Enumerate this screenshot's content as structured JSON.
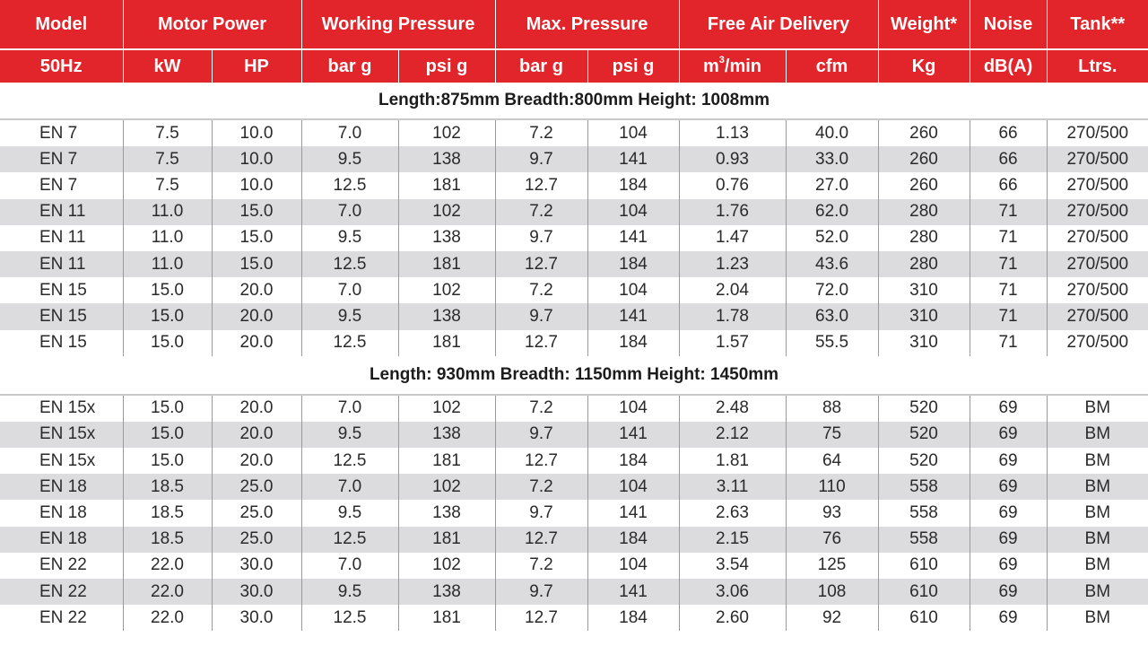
{
  "header": {
    "row1": [
      "Model",
      "Motor Power",
      "Working Pressure",
      "Max. Pressure",
      "Free Air Delivery",
      "Weight*",
      "Noise",
      "Tank**"
    ],
    "row2": {
      "model": "50Hz",
      "kw": "kW",
      "hp": "HP",
      "bar_w": "bar g",
      "psi_w": "psi g",
      "bar_m": "bar g",
      "psi_m": "psi g",
      "m3_base": "m",
      "m3_sup": "3",
      "m3_tail": "/min",
      "cfm": "cfm",
      "kg": "Kg",
      "db": "dB(A)",
      "ltrs": "Ltrs."
    }
  },
  "sections": [
    {
      "dimensions": "Length:875mm Breadth:800mm Height: 1008mm",
      "rows": [
        [
          "EN 7",
          "7.5",
          "10.0",
          "7.0",
          "102",
          "7.2",
          "104",
          "1.13",
          "40.0",
          "260",
          "66",
          "270/500"
        ],
        [
          "EN 7",
          "7.5",
          "10.0",
          "9.5",
          "138",
          "9.7",
          "141",
          "0.93",
          "33.0",
          "260",
          "66",
          "270/500"
        ],
        [
          "EN 7",
          "7.5",
          "10.0",
          "12.5",
          "181",
          "12.7",
          "184",
          "0.76",
          "27.0",
          "260",
          "66",
          "270/500"
        ],
        [
          "EN 11",
          "11.0",
          "15.0",
          "7.0",
          "102",
          "7.2",
          "104",
          "1.76",
          "62.0",
          "280",
          "71",
          "270/500"
        ],
        [
          "EN 11",
          "11.0",
          "15.0",
          "9.5",
          "138",
          "9.7",
          "141",
          "1.47",
          "52.0",
          "280",
          "71",
          "270/500"
        ],
        [
          "EN 11",
          "11.0",
          "15.0",
          "12.5",
          "181",
          "12.7",
          "184",
          "1.23",
          "43.6",
          "280",
          "71",
          "270/500"
        ],
        [
          "EN 15",
          "15.0",
          "20.0",
          "7.0",
          "102",
          "7.2",
          "104",
          "2.04",
          "72.0",
          "310",
          "71",
          "270/500"
        ],
        [
          "EN 15",
          "15.0",
          "20.0",
          "9.5",
          "138",
          "9.7",
          "141",
          "1.78",
          "63.0",
          "310",
          "71",
          "270/500"
        ],
        [
          "EN 15",
          "15.0",
          "20.0",
          "12.5",
          "181",
          "12.7",
          "184",
          "1.57",
          "55.5",
          "310",
          "71",
          "270/500"
        ]
      ]
    },
    {
      "dimensions": "Length: 930mm Breadth: 1150mm Height: 1450mm",
      "rows": [
        [
          "EN 15x",
          "15.0",
          "20.0",
          "7.0",
          "102",
          "7.2",
          "104",
          "2.48",
          "88",
          "520",
          "69",
          "BM"
        ],
        [
          "EN 15x",
          "15.0",
          "20.0",
          "9.5",
          "138",
          "9.7",
          "141",
          "2.12",
          "75",
          "520",
          "69",
          "BM"
        ],
        [
          "EN 15x",
          "15.0",
          "20.0",
          "12.5",
          "181",
          "12.7",
          "184",
          "1.81",
          "64",
          "520",
          "69",
          "BM"
        ],
        [
          "EN 18",
          "18.5",
          "25.0",
          "7.0",
          "102",
          "7.2",
          "104",
          "3.11",
          "110",
          "558",
          "69",
          "BM"
        ],
        [
          "EN 18",
          "18.5",
          "25.0",
          "9.5",
          "138",
          "9.7",
          "141",
          "2.63",
          "93",
          "558",
          "69",
          "BM"
        ],
        [
          "EN 18",
          "18.5",
          "25.0",
          "12.5",
          "181",
          "12.7",
          "184",
          "2.15",
          "76",
          "558",
          "69",
          "BM"
        ],
        [
          "EN 22",
          "22.0",
          "30.0",
          "7.0",
          "102",
          "7.2",
          "104",
          "3.54",
          "125",
          "610",
          "69",
          "BM"
        ],
        [
          "EN 22",
          "22.0",
          "30.0",
          "9.5",
          "138",
          "9.7",
          "141",
          "3.06",
          "108",
          "610",
          "69",
          "BM"
        ],
        [
          "EN 22",
          "22.0",
          "30.0",
          "12.5",
          "181",
          "12.7",
          "184",
          "2.60",
          "92",
          "610",
          "69",
          "BM"
        ]
      ]
    }
  ],
  "colors": {
    "header_red": "#e2252b",
    "stripe_gray": "#dcdcde"
  }
}
